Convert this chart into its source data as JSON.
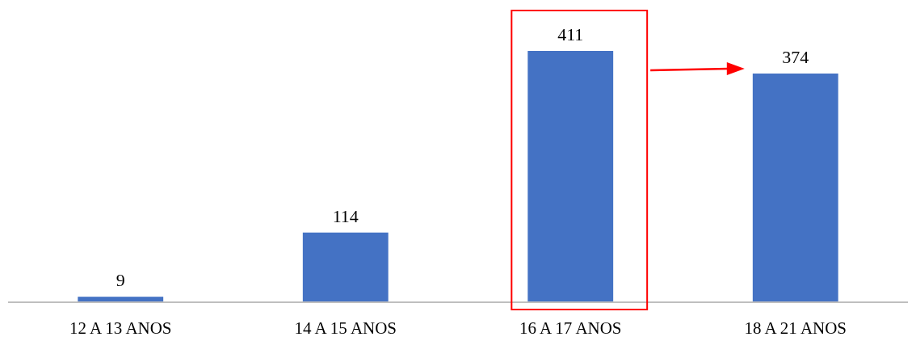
{
  "chart_data": {
    "type": "bar",
    "categories": [
      "12 A 13 ANOS",
      "14 A 15 ANOS",
      "16 A 17 ANOS",
      "18 A 21 ANOS"
    ],
    "values": [
      9,
      114,
      411,
      374
    ],
    "color": "#4472c4",
    "data_labels": true
  }
}
